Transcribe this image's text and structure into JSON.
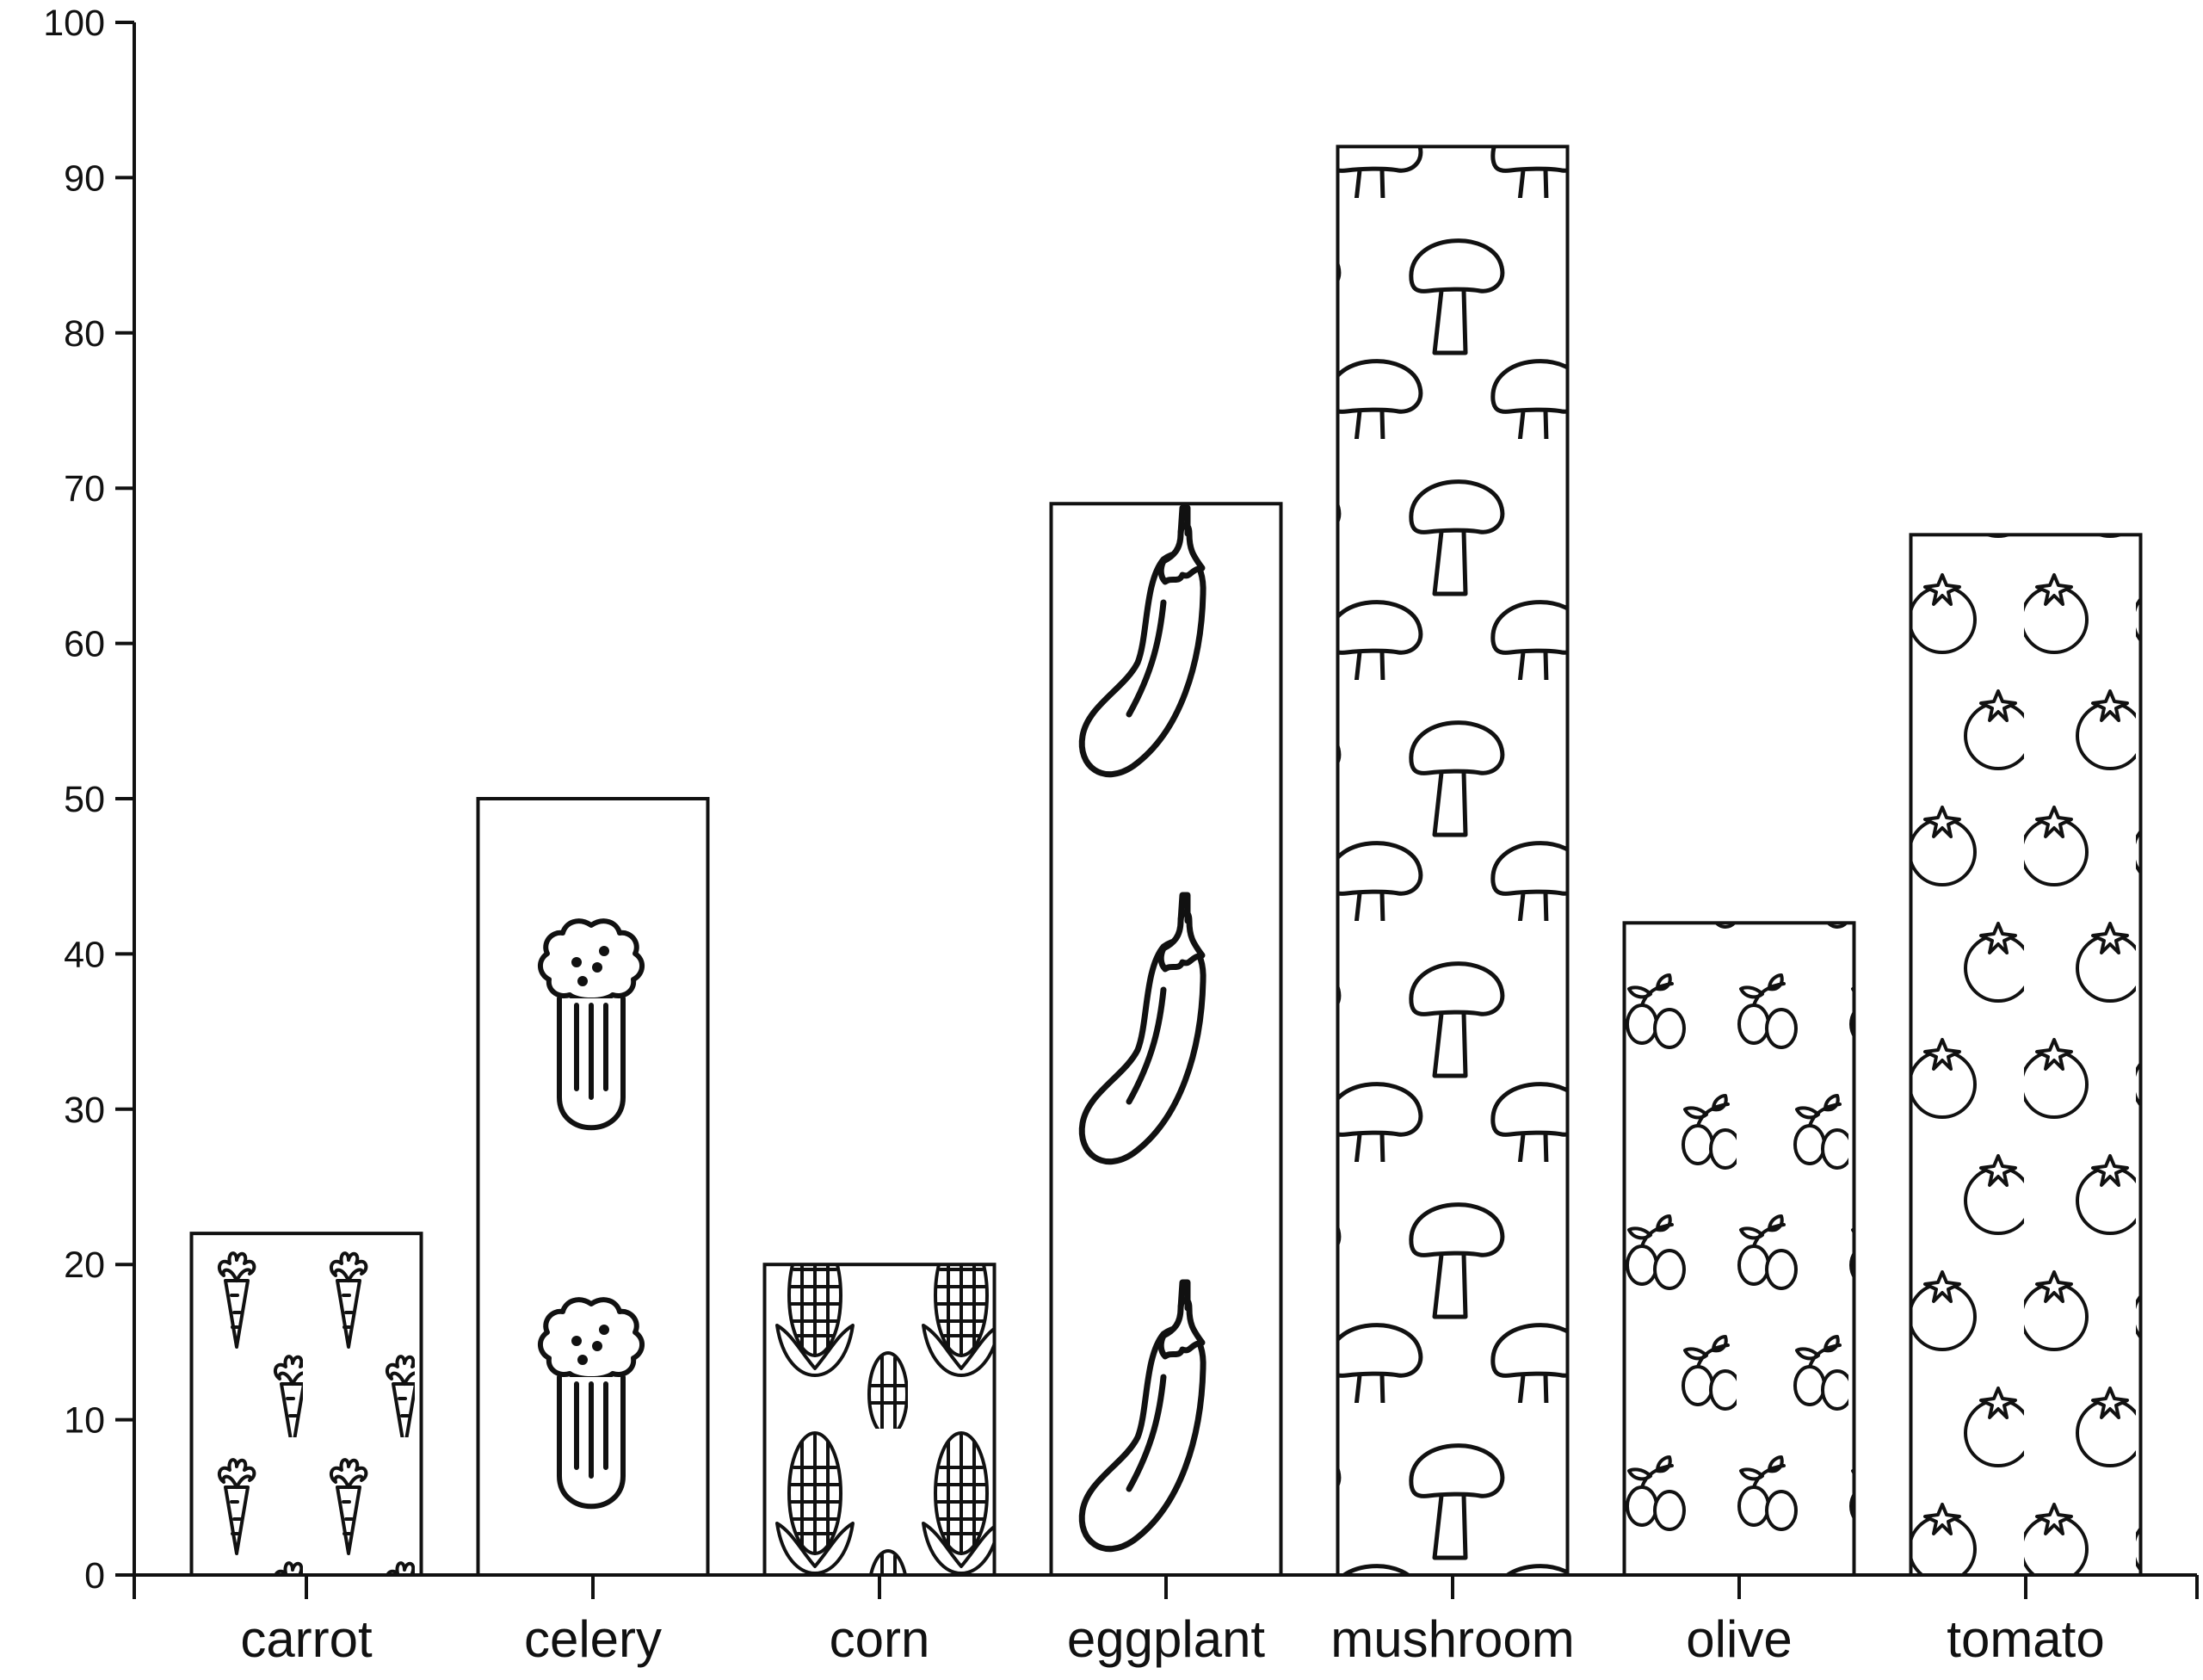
{
  "chart_data": {
    "type": "bar",
    "categories": [
      "carrot",
      "celery",
      "corn",
      "eggplant",
      "mushroom",
      "olive",
      "tomato"
    ],
    "values": [
      22,
      50,
      20,
      69,
      92,
      42,
      67
    ],
    "ylim": [
      0,
      100
    ],
    "yticks": [
      0,
      10,
      20,
      30,
      40,
      50,
      60,
      70,
      80,
      90,
      100
    ],
    "title": "",
    "xlabel": "",
    "ylabel": "",
    "grid": false,
    "bar_fill": "#ffffff",
    "bar_stroke": "#111111",
    "pattern_icons": [
      "carrot-icon",
      "celery-icon",
      "corn-icon",
      "eggplant-icon",
      "mushroom-icon",
      "olive-icon",
      "tomato-icon"
    ]
  }
}
